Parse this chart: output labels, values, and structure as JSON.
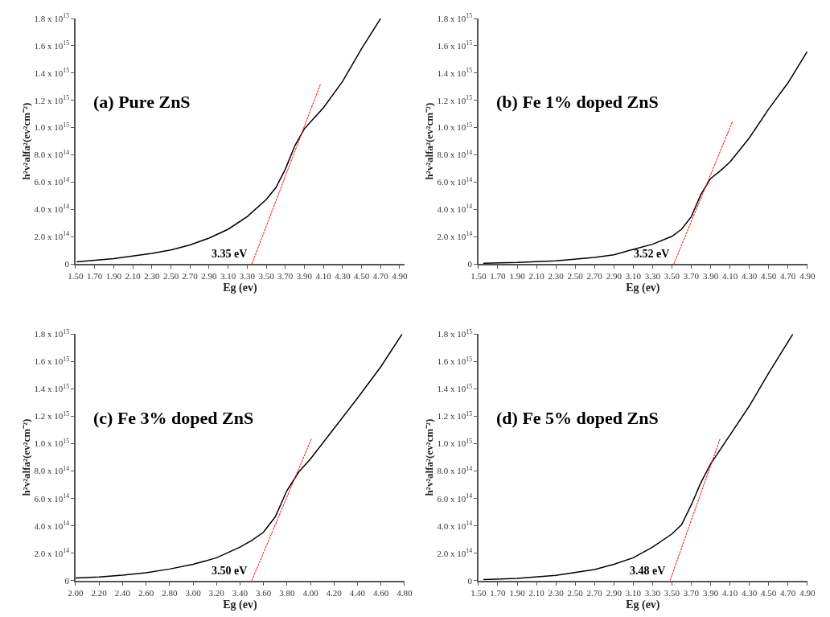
{
  "chart_data": [
    {
      "type": "line",
      "title": "(a) Pure ZnS",
      "xlabel": "Eg (ev)",
      "ylabel": "h²v²alfa²(ev²cm⁻²)",
      "marker": "none",
      "xlim": [
        1.5,
        4.95
      ],
      "xticks": [
        {
          "value": 1.5,
          "label": "1.50"
        },
        {
          "value": 1.7,
          "label": "1.70"
        },
        {
          "value": 1.9,
          "label": "1.90"
        },
        {
          "value": 2.1,
          "label": "2.10"
        },
        {
          "value": 2.3,
          "label": "2.30"
        },
        {
          "value": 2.5,
          "label": "2.50"
        },
        {
          "value": 2.7,
          "label": "2.70"
        },
        {
          "value": 2.9,
          "label": "2.90"
        },
        {
          "value": 3.1,
          "label": "3.10"
        },
        {
          "value": 3.3,
          "label": "3.30"
        },
        {
          "value": 3.5,
          "label": "3.50"
        },
        {
          "value": 3.7,
          "label": "3.70"
        },
        {
          "value": 3.9,
          "label": "3.90"
        },
        {
          "value": 4.1,
          "label": "4.10"
        },
        {
          "value": 4.3,
          "label": "4.30"
        },
        {
          "value": 4.5,
          "label": "4.50"
        },
        {
          "value": 4.7,
          "label": "4.70"
        },
        {
          "value": 4.9,
          "label": "4.90"
        }
      ],
      "ylim": [
        0,
        1800000000000000.0
      ],
      "yticks": [
        0,
        {
          "value": 200000000000000.0,
          "label": "2.0 x 10$^{14}$"
        },
        {
          "value": 400000000000000.0,
          "label": "4.0 x 10$^{14}$"
        },
        {
          "value": 600000000000000.0,
          "label": "6.0 x 10$^{14}$"
        },
        {
          "value": 800000000000000.0,
          "label": "8.0 x 10$^{14}$"
        },
        {
          "value": 1000000000000000.0,
          "label": "1.0 x 10$^{15}$"
        },
        {
          "value": 1200000000000000.0,
          "label": "1.2 x 10$^{15}$"
        },
        {
          "value": 1400000000000000.0,
          "label": "1.4 x 10$^{15}$"
        },
        {
          "value": 1600000000000000.0,
          "label": "1.6 x 10$^{15}$"
        },
        {
          "value": 1800000000000000.0,
          "label": "1.8 x 10$^{15}$"
        }
      ],
      "annotations": [
        {
          "text": "3.35 eV",
          "x": 3.35,
          "y": 0
        }
      ],
      "series": [
        {
          "color": "#000000",
          "line_style": "solid",
          "x": [
            1.51,
            1.9,
            2.3,
            2.5,
            2.7,
            2.9,
            3.1,
            3.3,
            3.5,
            3.6,
            3.7,
            3.8,
            3.9,
            4.0,
            4.1,
            4.3,
            4.5,
            4.7
          ],
          "values": [
            15000000000000.0,
            39000000000000.0,
            77000000000000.0,
            102000000000000.0,
            139000000000000.0,
            189000000000000.0,
            254000000000000.0,
            346000000000000.0,
            472000000000000.0,
            558000000000000.0,
            693000000000000.0,
            866000000000000.0,
            991000000000000.0,
            1068000000000000.0,
            1145000000000000.0,
            1338000000000000.0,
            1578000000000000.0,
            1800000000000000.0
          ]
        },
        {
          "color": "#ff0000",
          "line_style": "dashed",
          "x": [
            3.35,
            4.07
          ],
          "values": [
            0,
            1320000000000000.0
          ]
        }
      ]
    },
    {
      "type": "line",
      "title": "(b) Fe 1% doped ZnS",
      "xlabel": "Eg (ev)",
      "ylabel": "h²v²alfa²(ev²cm⁻²)",
      "marker": "none",
      "xlim": [
        1.5,
        4.9
      ],
      "xticks": [
        {
          "value": 1.5,
          "label": "1.50"
        },
        {
          "value": 1.7,
          "label": "1.70"
        },
        {
          "value": 1.9,
          "label": "1.90"
        },
        {
          "value": 2.1,
          "label": "2.10"
        },
        {
          "value": 2.3,
          "label": "2.30"
        },
        {
          "value": 2.5,
          "label": "2.50"
        },
        {
          "value": 2.7,
          "label": "2.70"
        },
        {
          "value": 2.9,
          "label": "2.90"
        },
        {
          "value": 3.1,
          "label": "3.10"
        },
        {
          "value": 3.3,
          "label": "3.30"
        },
        {
          "value": 3.5,
          "label": "3.50"
        },
        {
          "value": 3.7,
          "label": "3.70"
        },
        {
          "value": 3.9,
          "label": "3.90"
        },
        {
          "value": 4.1,
          "label": "4.10"
        },
        {
          "value": 4.3,
          "label": "4.30"
        },
        {
          "value": 4.5,
          "label": "4.50"
        },
        {
          "value": 4.7,
          "label": "4.70"
        },
        {
          "value": 4.9,
          "label": "4.90"
        }
      ],
      "ylim": [
        0,
        1800000000000000.0
      ],
      "yticks": [
        0,
        {
          "value": 200000000000000.0,
          "label": "2.0 x 10$^{14}$"
        },
        {
          "value": 400000000000000.0,
          "label": "4.0 x 10$^{14}$"
        },
        {
          "value": 600000000000000.0,
          "label": "6.0 x 10$^{14}$"
        },
        {
          "value": 800000000000000.0,
          "label": "8.0 x 10$^{14}$"
        },
        {
          "value": 1000000000000000.0,
          "label": "1.0 x 10$^{15}$"
        },
        {
          "value": 1200000000000000.0,
          "label": "1.2 x 10$^{15}$"
        },
        {
          "value": 1400000000000000.0,
          "label": "1.4 x 10$^{15}$"
        },
        {
          "value": 1600000000000000.0,
          "label": "1.6 x 10$^{15}$"
        },
        {
          "value": 1800000000000000.0,
          "label": "1.8 x 10$^{15}$"
        }
      ],
      "annotations": [
        {
          "text": "3.52 eV",
          "x": 3.52,
          "y": 0
        }
      ],
      "series": [
        {
          "color": "#000000",
          "line_style": "solid",
          "x": [
            1.55,
            1.9,
            2.3,
            2.7,
            2.9,
            3.1,
            3.3,
            3.5,
            3.6,
            3.7,
            3.8,
            3.9,
            4.0,
            4.1,
            4.3,
            4.5,
            4.7,
            4.9
          ],
          "values": [
            5000000000000.0,
            10000000000000.0,
            23000000000000.0,
            48000000000000.0,
            67000000000000.0,
            106000000000000.0,
            144000000000000.0,
            202000000000000.0,
            254000000000000.0,
            346000000000000.0,
            510000000000000.0,
            626000000000000.0,
            683000000000000.0,
            747000000000000.0,
            924000000000000.0,
            1136000000000000.0,
            1328000000000000.0,
            1559000000000000.0
          ]
        },
        {
          "color": "#ff0000",
          "line_style": "dashed",
          "x": [
            3.52,
            4.13
          ],
          "values": [
            0,
            1050000000000000.0
          ]
        }
      ]
    },
    {
      "type": "line",
      "title": "(c) Fe 3% doped ZnS",
      "xlabel": "Eg (ev)",
      "ylabel": "h²v²alfa²(ev²cm⁻²)",
      "marker": "none",
      "xlim": [
        2.0,
        4.8
      ],
      "xticks": [
        {
          "value": 2.0,
          "label": "2.00"
        },
        {
          "value": 2.2,
          "label": "2.20"
        },
        {
          "value": 2.4,
          "label": "2.40"
        },
        {
          "value": 2.6,
          "label": "2.60"
        },
        {
          "value": 2.8,
          "label": "2.80"
        },
        {
          "value": 3.0,
          "label": "3.00"
        },
        {
          "value": 3.2,
          "label": "3.20"
        },
        {
          "value": 3.4,
          "label": "3.40"
        },
        {
          "value": 3.6,
          "label": "3.60"
        },
        {
          "value": 3.8,
          "label": "3.80"
        },
        {
          "value": 4.0,
          "label": "4.00"
        },
        {
          "value": 4.2,
          "label": "4.20"
        },
        {
          "value": 4.4,
          "label": "4.40"
        },
        {
          "value": 4.6,
          "label": "4.60"
        },
        {
          "value": 4.8,
          "label": "4.80"
        }
      ],
      "ylim": [
        0,
        1800000000000000.0
      ],
      "yticks": [
        0,
        {
          "value": 200000000000000.0,
          "label": "2.0 x 10$^{14}$"
        },
        {
          "value": 400000000000000.0,
          "label": "4.0 x 10$^{14}$"
        },
        {
          "value": 600000000000000.0,
          "label": "6.0 x 10$^{14}$"
        },
        {
          "value": 800000000000000.0,
          "label": "8.0 x 10$^{14}$"
        },
        {
          "value": 1000000000000000.0,
          "label": "1.0 x 10$^{15}$"
        },
        {
          "value": 1200000000000000.0,
          "label": "1.2 x 10$^{15}$"
        },
        {
          "value": 1400000000000000.0,
          "label": "1.4 x 10$^{15}$"
        },
        {
          "value": 1600000000000000.0,
          "label": "1.6 x 10$^{15}$"
        },
        {
          "value": 1800000000000000.0,
          "label": "1.8 x 10$^{15}$"
        }
      ],
      "annotations": [
        {
          "text": "3.50 eV",
          "x": 3.5,
          "y": 0
        }
      ],
      "series": [
        {
          "color": "#000000",
          "line_style": "solid",
          "x": [
            2.0,
            2.2,
            2.4,
            2.6,
            2.8,
            3.0,
            3.2,
            3.4,
            3.5,
            3.6,
            3.7,
            3.8,
            3.9,
            4.0,
            4.2,
            4.4,
            4.6,
            4.78
          ],
          "values": [
            19000000000000.0,
            27000000000000.0,
            40000000000000.0,
            58000000000000.0,
            85000000000000.0,
            119000000000000.0,
            167000000000000.0,
            245000000000000.0,
            293000000000000.0,
            354000000000000.0,
            466000000000000.0,
            658000000000000.0,
            793000000000000.0,
            889000000000000.0,
            1111000000000000.0,
            1332000000000000.0,
            1563000000000000.0,
            1800000000000000.0
          ]
        },
        {
          "color": "#ff0000",
          "line_style": "dashed",
          "x": [
            3.5,
            4.01
          ],
          "values": [
            0,
            1040000000000000.0
          ]
        }
      ]
    },
    {
      "type": "line",
      "title": "(d) Fe 5% doped ZnS",
      "xlabel": "Eg (ev)",
      "ylabel": "h²v²alfa²(ev²cm⁻²)",
      "marker": "none",
      "xlim": [
        1.5,
        4.9
      ],
      "xticks": [
        {
          "value": 1.5,
          "label": "1.50"
        },
        {
          "value": 1.7,
          "label": "1.70"
        },
        {
          "value": 1.9,
          "label": "1.90"
        },
        {
          "value": 2.1,
          "label": "2.10"
        },
        {
          "value": 2.3,
          "label": "2.30"
        },
        {
          "value": 2.5,
          "label": "2.50"
        },
        {
          "value": 2.7,
          "label": "2.70"
        },
        {
          "value": 2.9,
          "label": "2.90"
        },
        {
          "value": 3.1,
          "label": "3.10"
        },
        {
          "value": 3.3,
          "label": "3.30"
        },
        {
          "value": 3.5,
          "label": "3.50"
        },
        {
          "value": 3.7,
          "label": "3.70"
        },
        {
          "value": 3.9,
          "label": "3.90"
        },
        {
          "value": 4.1,
          "label": "4.10"
        },
        {
          "value": 4.3,
          "label": "4.30"
        },
        {
          "value": 4.5,
          "label": "4.50"
        },
        {
          "value": 4.7,
          "label": "4.70"
        },
        {
          "value": 4.9,
          "label": "4.90"
        }
      ],
      "ylim": [
        0,
        1800000000000000.0
      ],
      "yticks": [
        0,
        {
          "value": 200000000000000.0,
          "label": "2.0 x 10$^{14}$"
        },
        {
          "value": 400000000000000.0,
          "label": "4.0 x 10$^{14}$"
        },
        {
          "value": 600000000000000.0,
          "label": "6.0 x 10$^{14}$"
        },
        {
          "value": 800000000000000.0,
          "label": "8.0 x 10$^{14}$"
        },
        {
          "value": 1000000000000000.0,
          "label": "1.0 x 10$^{15}$"
        },
        {
          "value": 1200000000000000.0,
          "label": "1.2 x 10$^{15}$"
        },
        {
          "value": 1400000000000000.0,
          "label": "1.4 x 10$^{15}$"
        },
        {
          "value": 1600000000000000.0,
          "label": "1.6 x 10$^{15}$"
        },
        {
          "value": 1800000000000000.0,
          "label": "1.8 x 10$^{15}$"
        }
      ],
      "annotations": [
        {
          "text": "3.48 eV",
          "x": 3.48,
          "y": 0
        }
      ],
      "series": [
        {
          "color": "#000000",
          "line_style": "solid",
          "x": [
            1.55,
            1.9,
            2.3,
            2.7,
            2.9,
            3.1,
            3.3,
            3.5,
            3.6,
            3.7,
            3.8,
            3.9,
            4.0,
            4.1,
            4.3,
            4.5,
            4.75
          ],
          "values": [
            8000000000000.0,
            17000000000000.0,
            39000000000000.0,
            81000000000000.0,
            119000000000000.0,
            167000000000000.0,
            245000000000000.0,
            341000000000000.0,
            408000000000000.0,
            553000000000000.0,
            716000000000000.0,
            851000000000000.0,
            957000000000000.0,
            1063000000000000.0,
            1275000000000000.0,
            1515000000000000.0,
            1800000000000000.0
          ]
        },
        {
          "color": "#ff0000",
          "line_style": "dashed",
          "x": [
            3.48,
            4.0
          ],
          "values": [
            0,
            1040000000000000.0
          ]
        }
      ]
    }
  ]
}
